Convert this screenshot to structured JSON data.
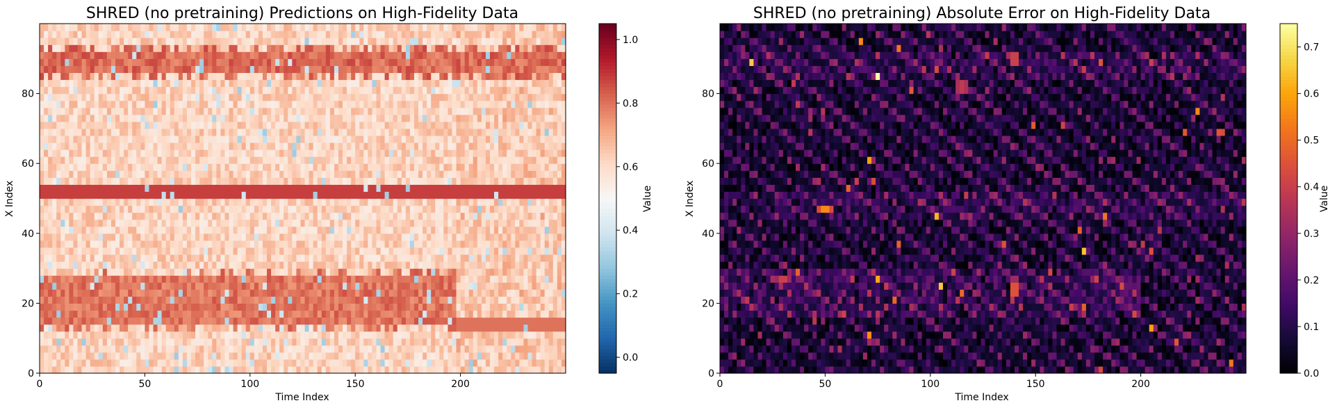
{
  "chart_data": [
    {
      "type": "heatmap",
      "title": "SHRED (no pretraining) Predictions on High-Fidelity Data",
      "xlabel": "Time Index",
      "ylabel": "X Index",
      "xlim": [
        0,
        250
      ],
      "ylim": [
        0,
        100
      ],
      "xticks": [
        0,
        50,
        100,
        150,
        200
      ],
      "yticks": [
        0,
        20,
        40,
        60,
        80
      ],
      "colormap": "RdBu_r",
      "colorbar": {
        "label": "Value",
        "range": [
          -0.05,
          1.05
        ],
        "ticks": [
          0.0,
          0.2,
          0.4,
          0.6,
          0.8,
          1.0
        ]
      },
      "pattern": {
        "base_value": 0.62,
        "bands": [
          {
            "x_center": 52,
            "half_width": 2.2,
            "value": 0.88,
            "x_start": 0,
            "x_end": 250,
            "fluctuating": false
          },
          {
            "x_center": 89,
            "half_width": 2.5,
            "value": 0.86,
            "x_start": 0,
            "x_end": 250,
            "fluctuating": true
          },
          {
            "x_center": 21,
            "half_width": 6,
            "value": 0.84,
            "x_start": 0,
            "x_end": 198,
            "fluctuating": true
          },
          {
            "x_center": 14,
            "half_width": 2.2,
            "value": 0.8,
            "x_start": 198,
            "x_end": 250,
            "fluctuating": false
          }
        ]
      }
    },
    {
      "type": "heatmap",
      "title": "SHRED (no pretraining) Absolute Error on High-Fidelity Data",
      "xlabel": "Time Index",
      "ylabel": "X Index",
      "xlim": [
        0,
        250
      ],
      "ylim": [
        0,
        100
      ],
      "xticks": [
        0,
        50,
        100,
        150,
        200
      ],
      "yticks": [
        0,
        20,
        40,
        60,
        80
      ],
      "colormap": "inferno",
      "colorbar": {
        "label": "Value",
        "range": [
          0.0,
          0.75
        ],
        "ticks": [
          0.0,
          0.1,
          0.2,
          0.3,
          0.4,
          0.5,
          0.6,
          0.7
        ]
      },
      "pattern": {
        "base_value": 0.06,
        "hotspots": [
          {
            "x": 47,
            "time": 50,
            "value": 0.62
          },
          {
            "x": 24,
            "time": 140,
            "value": 0.58
          },
          {
            "x": 90,
            "time": 140,
            "value": 0.52
          },
          {
            "x": 82,
            "time": 115,
            "value": 0.48
          },
          {
            "x": 27,
            "time": 30,
            "value": 0.45
          }
        ]
      }
    }
  ]
}
